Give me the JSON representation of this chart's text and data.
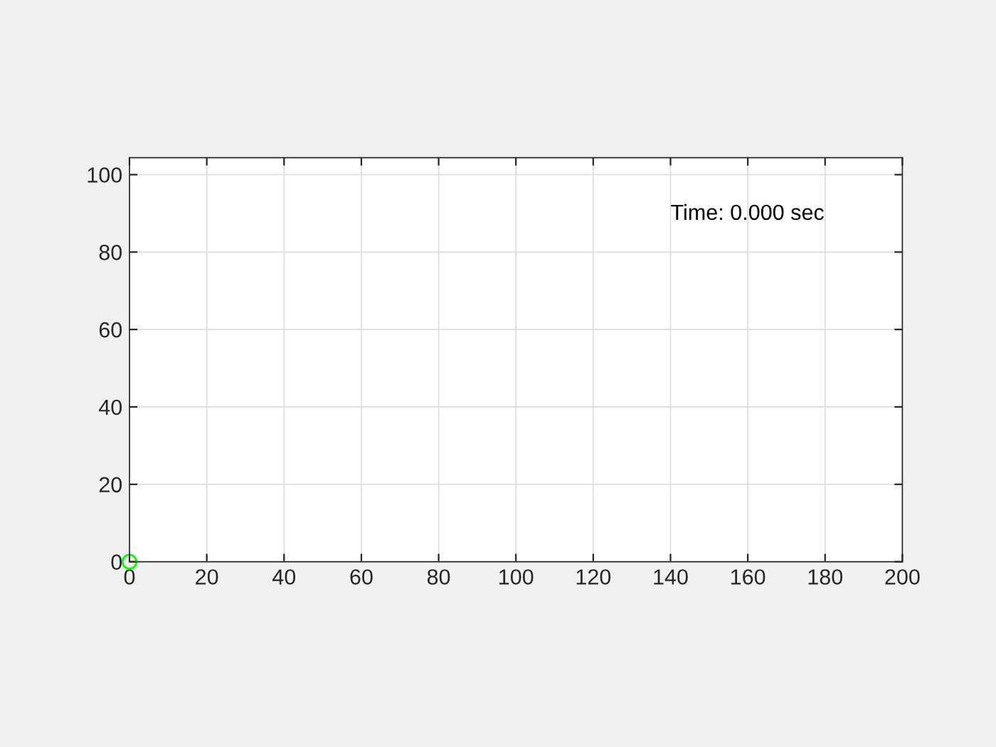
{
  "chart_data": {
    "type": "scatter",
    "series": [
      {
        "color": "#00ff00",
        "x": [
          0
        ],
        "values": [
          0
        ]
      }
    ],
    "xlim": [
      0,
      200
    ],
    "xticks": [
      0,
      20,
      40,
      60,
      80,
      100,
      120,
      140,
      160,
      180,
      200
    ],
    "ylim": [
      0,
      104.4
    ],
    "yticks": [
      0,
      20,
      40,
      60,
      80,
      100
    ],
    "annotations": [
      "Time: 0.000 sec"
    ],
    "grid": true,
    "marker": "circle",
    "legend": false
  }
}
